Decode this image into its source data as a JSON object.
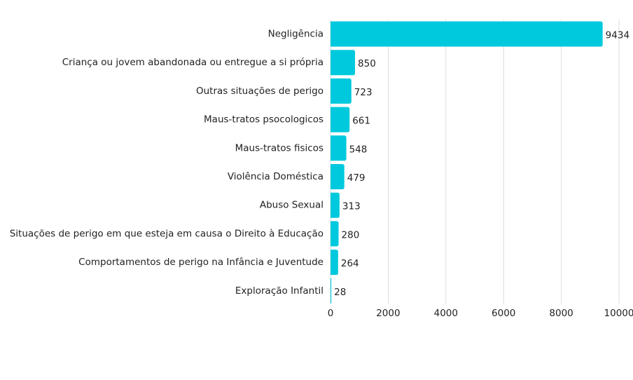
{
  "chart_data": {
    "type": "bar",
    "orientation": "horizontal",
    "categories": [
      "Negligência",
      "Criança ou jovem abandonada ou entregue a si própria",
      "Outras situações de perigo",
      "Maus-tratos psocologicos",
      "Maus-tratos fisicos",
      "Violência Doméstica",
      "Abuso Sexual",
      "Situações de perigo em que esteja em causa o Direito à Educação",
      "Comportamentos de perigo na Infância e Juventude",
      "Exploração Infantil"
    ],
    "values": [
      9434,
      850,
      723,
      661,
      548,
      479,
      313,
      280,
      264,
      28
    ],
    "color": "#00c9dd",
    "xlim": [
      0,
      10000
    ],
    "xticks": [
      0,
      2000,
      4000,
      6000,
      8000,
      10000
    ],
    "grid": true
  }
}
